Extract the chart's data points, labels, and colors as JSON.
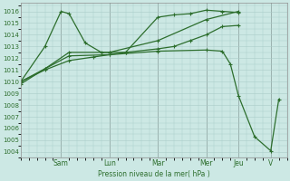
{
  "bg_color": "#cce8e4",
  "grid_color": "#aaccc8",
  "line_color": "#2d6e2d",
  "xlabel_text": "Pression niveau de la mer( hPa )",
  "ylim": [
    1003.5,
    1016.7
  ],
  "yticks": [
    1004,
    1005,
    1006,
    1007,
    1008,
    1009,
    1010,
    1011,
    1012,
    1013,
    1014,
    1015,
    1016
  ],
  "xlim": [
    0,
    16.5
  ],
  "day_labels": [
    "Sam",
    "Lun",
    "Mar",
    "Mer",
    "Jeu",
    "V"
  ],
  "day_x": [
    2.5,
    5.5,
    8.5,
    11.5,
    13.5,
    15.5
  ],
  "series": [
    {
      "x": [
        0,
        1.5,
        2.5,
        3.0,
        4.0,
        5.0,
        5.5,
        6.5,
        8.5,
        9.5,
        10.5,
        11.5,
        12.5,
        13.5
      ],
      "y": [
        1010.0,
        1013.0,
        1016.0,
        1015.8,
        1013.3,
        1012.5,
        1012.5,
        1012.5,
        1015.5,
        1015.7,
        1015.8,
        1016.1,
        1016.0,
        1015.9
      ]
    },
    {
      "x": [
        0,
        1.5,
        3.0,
        4.5,
        5.5,
        6.5,
        8.5,
        9.5,
        10.5,
        11.5,
        12.5,
        13.5
      ],
      "y": [
        1010.0,
        1011.0,
        1011.8,
        1012.1,
        1012.3,
        1012.5,
        1012.8,
        1013.0,
        1013.5,
        1014.0,
        1014.7,
        1014.8
      ]
    },
    {
      "x": [
        0,
        1.5,
        3.0,
        5.5,
        8.5,
        11.5,
        13.5
      ],
      "y": [
        1010.0,
        1011.1,
        1012.5,
        1012.5,
        1013.5,
        1015.3,
        1016.0
      ]
    },
    {
      "x": [
        0,
        1.5,
        3.0,
        5.5,
        8.5,
        11.5,
        12.5,
        13.0,
        13.5,
        14.5,
        15.5,
        16.0
      ],
      "y": [
        1009.8,
        1011.1,
        1012.2,
        1012.3,
        1012.6,
        1012.7,
        1012.6,
        1011.5,
        1008.8,
        1005.3,
        1004.1,
        1008.5
      ]
    }
  ]
}
